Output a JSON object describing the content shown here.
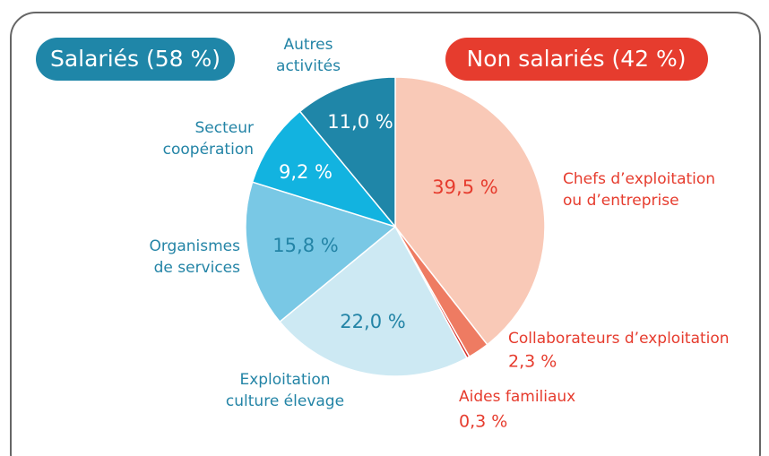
{
  "chart_data": {
    "type": "pie",
    "groups": [
      {
        "label": "Salariés (58 %)",
        "color": "#1f86a8"
      },
      {
        "label": "Non salariés (42 %)",
        "color": "#e63c2e"
      }
    ],
    "categories": [
      "Chefs d’exploitation\nou d’entreprise",
      "Collaborateurs d’exploitation",
      "Aides familiaux",
      "Exploitation\nculture élevage",
      "Organismes\nde services",
      "Secteur\ncoopération",
      "Autres\nactivités"
    ],
    "values": [
      39.5,
      2.3,
      0.3,
      22.0,
      15.8,
      9.2,
      11.0
    ],
    "value_labels": [
      "39,5 %",
      "2,3 %",
      "0,3 %",
      "22,0 %",
      "15,8 %",
      "9,2 %",
      "11,0 %"
    ],
    "colors": [
      "#f9c9b7",
      "#ee7b62",
      "#d42d27",
      "#cde9f3",
      "#79c8e5",
      "#12b3e0",
      "#1f86a8"
    ]
  }
}
